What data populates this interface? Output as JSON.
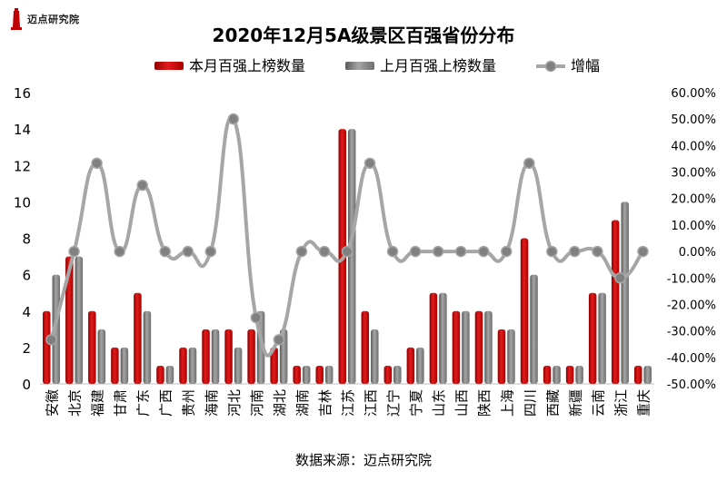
{
  "logo": {
    "name": "迈点研究院"
  },
  "chart_data": {
    "type": "bar",
    "title": "2020年12月5A级景区百强省份分布",
    "source": "数据来源：迈点研究院",
    "legend_position": "top",
    "categories": [
      "安徽",
      "北京",
      "福建",
      "甘肃",
      "广东",
      "广西",
      "贵州",
      "海南",
      "河北",
      "河南",
      "湖北",
      "湖南",
      "吉林",
      "江苏",
      "江西",
      "辽宁",
      "宁夏",
      "山东",
      "山西",
      "陕西",
      "上海",
      "四川",
      "西藏",
      "新疆",
      "云南",
      "浙江",
      "重庆"
    ],
    "series": [
      {
        "name": "本月百强上榜数量",
        "kind": "bar",
        "axis": "left",
        "color": "#c00000",
        "values": [
          4,
          7,
          4,
          2,
          5,
          1,
          2,
          3,
          3,
          3,
          2,
          1,
          1,
          14,
          4,
          1,
          2,
          5,
          4,
          4,
          3,
          8,
          1,
          1,
          5,
          9,
          1
        ]
      },
      {
        "name": "上月百强上榜数量",
        "kind": "bar",
        "axis": "left",
        "color": "#7f7f7f",
        "values": [
          6,
          7,
          3,
          2,
          4,
          1,
          2,
          3,
          2,
          4,
          3,
          1,
          1,
          14,
          3,
          1,
          2,
          5,
          4,
          4,
          3,
          6,
          1,
          1,
          5,
          10,
          1
        ]
      },
      {
        "name": "增幅",
        "kind": "line",
        "axis": "right",
        "color": "#a6a6a6",
        "values": [
          -33.33,
          0,
          33.33,
          0,
          25,
          0,
          0,
          0,
          50,
          -25,
          -33.33,
          0,
          0,
          0,
          33.33,
          0,
          0,
          0,
          0,
          0,
          0,
          33.33,
          0,
          0,
          0,
          -10,
          0
        ]
      }
    ],
    "y_left": {
      "min": 0,
      "max": 16,
      "step": 2,
      "ticks": [
        "0",
        "2",
        "4",
        "6",
        "8",
        "10",
        "12",
        "14",
        "16"
      ]
    },
    "y_right": {
      "min": -50,
      "max": 60,
      "step": 10,
      "ticks": [
        "-50.00%",
        "-40.00%",
        "-30.00%",
        "-20.00%",
        "-10.00%",
        "0.00%",
        "10.00%",
        "20.00%",
        "30.00%",
        "40.00%",
        "50.00%",
        "60.00%"
      ]
    }
  }
}
